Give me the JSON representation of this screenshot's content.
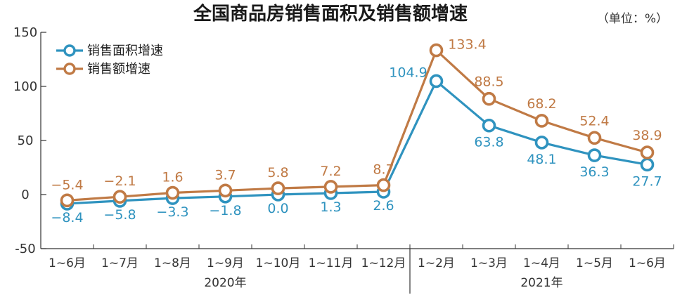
{
  "chart_data": {
    "type": "line",
    "title": "全国商品房销售面积及销售额增速",
    "unit": "（单位：%）",
    "categories": [
      "1~6月",
      "1~7月",
      "1~8月",
      "1~9月",
      "1~10月",
      "1~11月",
      "1~12月",
      "1~2月",
      "1~3月",
      "1~4月",
      "1~5月",
      "1~6月"
    ],
    "year_groups": [
      {
        "label": "2020年",
        "from": 0,
        "to": 6
      },
      {
        "label": "2021年",
        "from": 7,
        "to": 11
      }
    ],
    "ylim": [
      -50,
      150
    ],
    "yticks": [
      "-50",
      "0",
      "50",
      "100",
      "150"
    ],
    "series": [
      {
        "name": "销售面积增速",
        "color": "#2f93bf",
        "values": [
          -8.4,
          -5.8,
          -3.3,
          -1.8,
          0.0,
          1.3,
          2.6,
          104.9,
          63.8,
          48.1,
          36.3,
          27.7
        ],
        "labels": [
          "−8.4",
          "−5.8",
          "−3.3",
          "−1.8",
          "0.0",
          "1.3",
          "2.6",
          "104.9",
          "63.8",
          "48.1",
          "36.3",
          "27.7"
        ]
      },
      {
        "name": "销售额增速",
        "color": "#c07a45",
        "values": [
          -5.4,
          -2.1,
          1.6,
          3.7,
          5.8,
          7.2,
          8.7,
          133.4,
          88.5,
          68.2,
          52.4,
          38.9
        ],
        "labels": [
          "−5.4",
          "−2.1",
          "1.6",
          "3.7",
          "5.8",
          "7.2",
          "8.7",
          "133.4",
          "88.5",
          "68.2",
          "52.4",
          "38.9"
        ]
      }
    ],
    "grid": false,
    "legend": "top-left"
  }
}
